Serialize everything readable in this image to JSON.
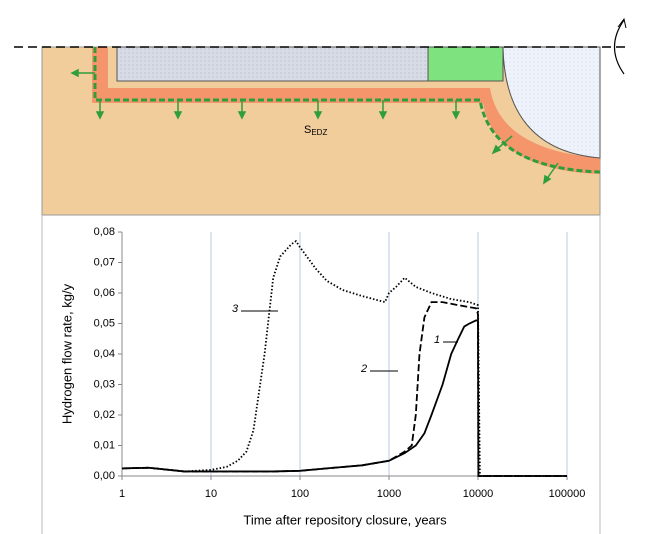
{
  "diagram": {
    "label": "S",
    "label_sub": "EDZ"
  },
  "chart_data": {
    "type": "line",
    "xlabel": "Time after repository closure, years",
    "ylabel": "Hydrogen flow rate, kg/y",
    "xlim": [
      1,
      100000
    ],
    "xticks": [
      1,
      10,
      100,
      1000,
      10000,
      100000
    ],
    "xlog": true,
    "ylim": [
      0,
      0.08
    ],
    "yticks": [
      {
        "value": 0,
        "label": "0,00"
      },
      {
        "value": 0.01,
        "label": "0,01"
      },
      {
        "value": 0.02,
        "label": "0,02"
      },
      {
        "value": 0.03,
        "label": "0,03"
      },
      {
        "value": 0.04,
        "label": "0,04"
      },
      {
        "value": 0.05,
        "label": "0,05"
      },
      {
        "value": 0.06,
        "label": "0,06"
      },
      {
        "value": 0.07,
        "label": "0,07"
      },
      {
        "value": 0.08,
        "label": "0,08"
      }
    ],
    "grid": "x",
    "series": [
      {
        "name": "1",
        "color": "#000000",
        "dash": "solid",
        "x": [
          1,
          2,
          5,
          10,
          20,
          50,
          100,
          200,
          500,
          1000,
          1500,
          2000,
          2500,
          3000,
          4000,
          5000,
          6000,
          7000,
          8000,
          9500,
          10000,
          10100,
          100000
        ],
        "values": [
          0.0025,
          0.0027,
          0.0015,
          0.0015,
          0.0015,
          0.0015,
          0.0017,
          0.0025,
          0.0035,
          0.005,
          0.0075,
          0.01,
          0.014,
          0.02,
          0.03,
          0.04,
          0.045,
          0.049,
          0.05,
          0.051,
          0.051,
          0,
          0
        ]
      },
      {
        "name": "2",
        "color": "#000000",
        "dash": "dash",
        "x": [
          1,
          2,
          5,
          10,
          20,
          50,
          100,
          200,
          500,
          1000,
          1500,
          1800,
          2000,
          2200,
          2500,
          3000,
          4000,
          6000,
          9500,
          10000,
          10100,
          100000
        ],
        "values": [
          0.0025,
          0.0027,
          0.0015,
          0.0015,
          0.0015,
          0.0015,
          0.0017,
          0.0025,
          0.0035,
          0.005,
          0.008,
          0.01,
          0.02,
          0.04,
          0.052,
          0.057,
          0.057,
          0.056,
          0.055,
          0.053,
          0,
          0
        ]
      },
      {
        "name": "3",
        "color": "#000000",
        "dash": "dot",
        "x": [
          1,
          2,
          5,
          10,
          15,
          20,
          25,
          30,
          40,
          50,
          60,
          80,
          90,
          100,
          150,
          200,
          300,
          500,
          900,
          1000,
          1200,
          1500,
          2000,
          3000,
          5000,
          8000,
          10000,
          10500,
          100000
        ],
        "values": [
          0.0025,
          0.0027,
          0.0015,
          0.002,
          0.003,
          0.005,
          0.008,
          0.015,
          0.04,
          0.065,
          0.072,
          0.076,
          0.077,
          0.075,
          0.068,
          0.064,
          0.061,
          0.059,
          0.057,
          0.06,
          0.062,
          0.065,
          0.062,
          0.06,
          0.058,
          0.057,
          0.056,
          0,
          0
        ]
      }
    ]
  }
}
